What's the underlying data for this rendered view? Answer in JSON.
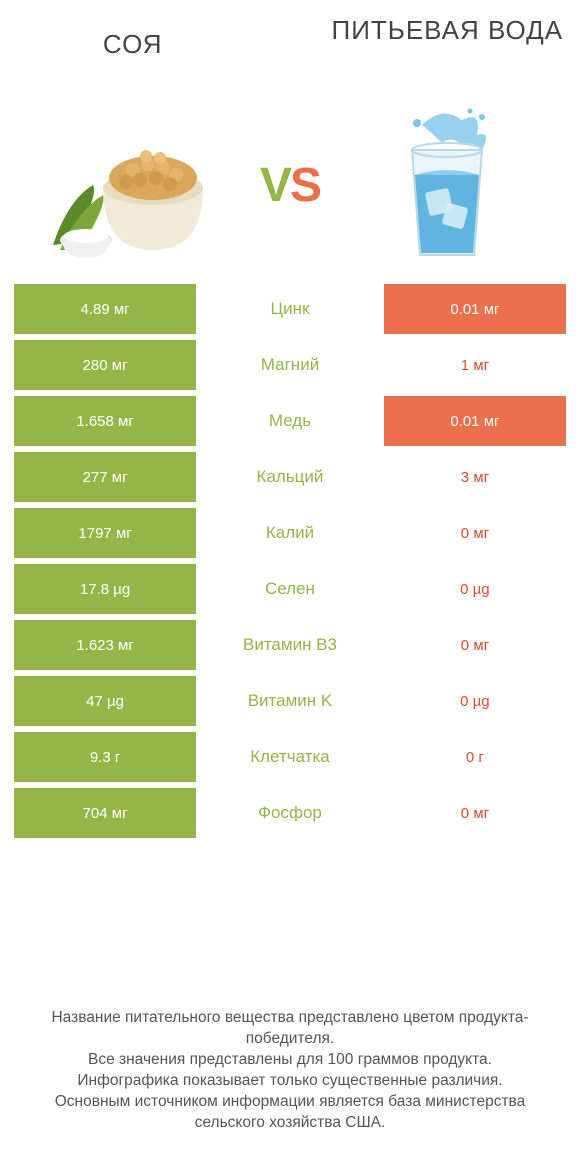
{
  "header": {
    "left_title": "СОЯ",
    "right_title": "ПИТЬЕВАЯ ВОДА",
    "vs_v": "V",
    "vs_s": "S"
  },
  "colors": {
    "green": "#95b548",
    "orange": "#e9704b",
    "mid_text": "#95b548",
    "footer_text": "#555555",
    "background": "#ffffff"
  },
  "rows": [
    {
      "left": "4.89 мг",
      "mid": "Цинк",
      "right": "0.01 мг",
      "left_full": true,
      "right_full": true
    },
    {
      "left": "280 мг",
      "mid": "Магний",
      "right": "1 мг",
      "left_full": true,
      "right_full": false
    },
    {
      "left": "1.658 мг",
      "mid": "Медь",
      "right": "0.01 мг",
      "left_full": true,
      "right_full": true
    },
    {
      "left": "277 мг",
      "mid": "Кальций",
      "right": "3 мг",
      "left_full": true,
      "right_full": false
    },
    {
      "left": "1797 мг",
      "mid": "Калий",
      "right": "0 мг",
      "left_full": true,
      "right_full": false
    },
    {
      "left": "17.8 µg",
      "mid": "Селен",
      "right": "0 µg",
      "left_full": true,
      "right_full": false
    },
    {
      "left": "1.623 мг",
      "mid": "Витамин B3",
      "right": "0 мг",
      "left_full": true,
      "right_full": false
    },
    {
      "left": "47 µg",
      "mid": "Витамин K",
      "right": "0 µg",
      "left_full": true,
      "right_full": false
    },
    {
      "left": "9.3 г",
      "mid": "Клетчатка",
      "right": "0 г",
      "left_full": true,
      "right_full": false
    },
    {
      "left": "704 мг",
      "mid": "Фосфор",
      "right": "0 мг",
      "left_full": true,
      "right_full": false
    }
  ],
  "footer": {
    "line1": "Название питательного вещества представлено цветом продукта-победителя.",
    "line2": "Все значения представлены для 100 граммов продукта.",
    "line3": "Инфографика показывает только существенные различия.",
    "line4": "Основным источником информации является база министерства сельского хозяйства США."
  }
}
